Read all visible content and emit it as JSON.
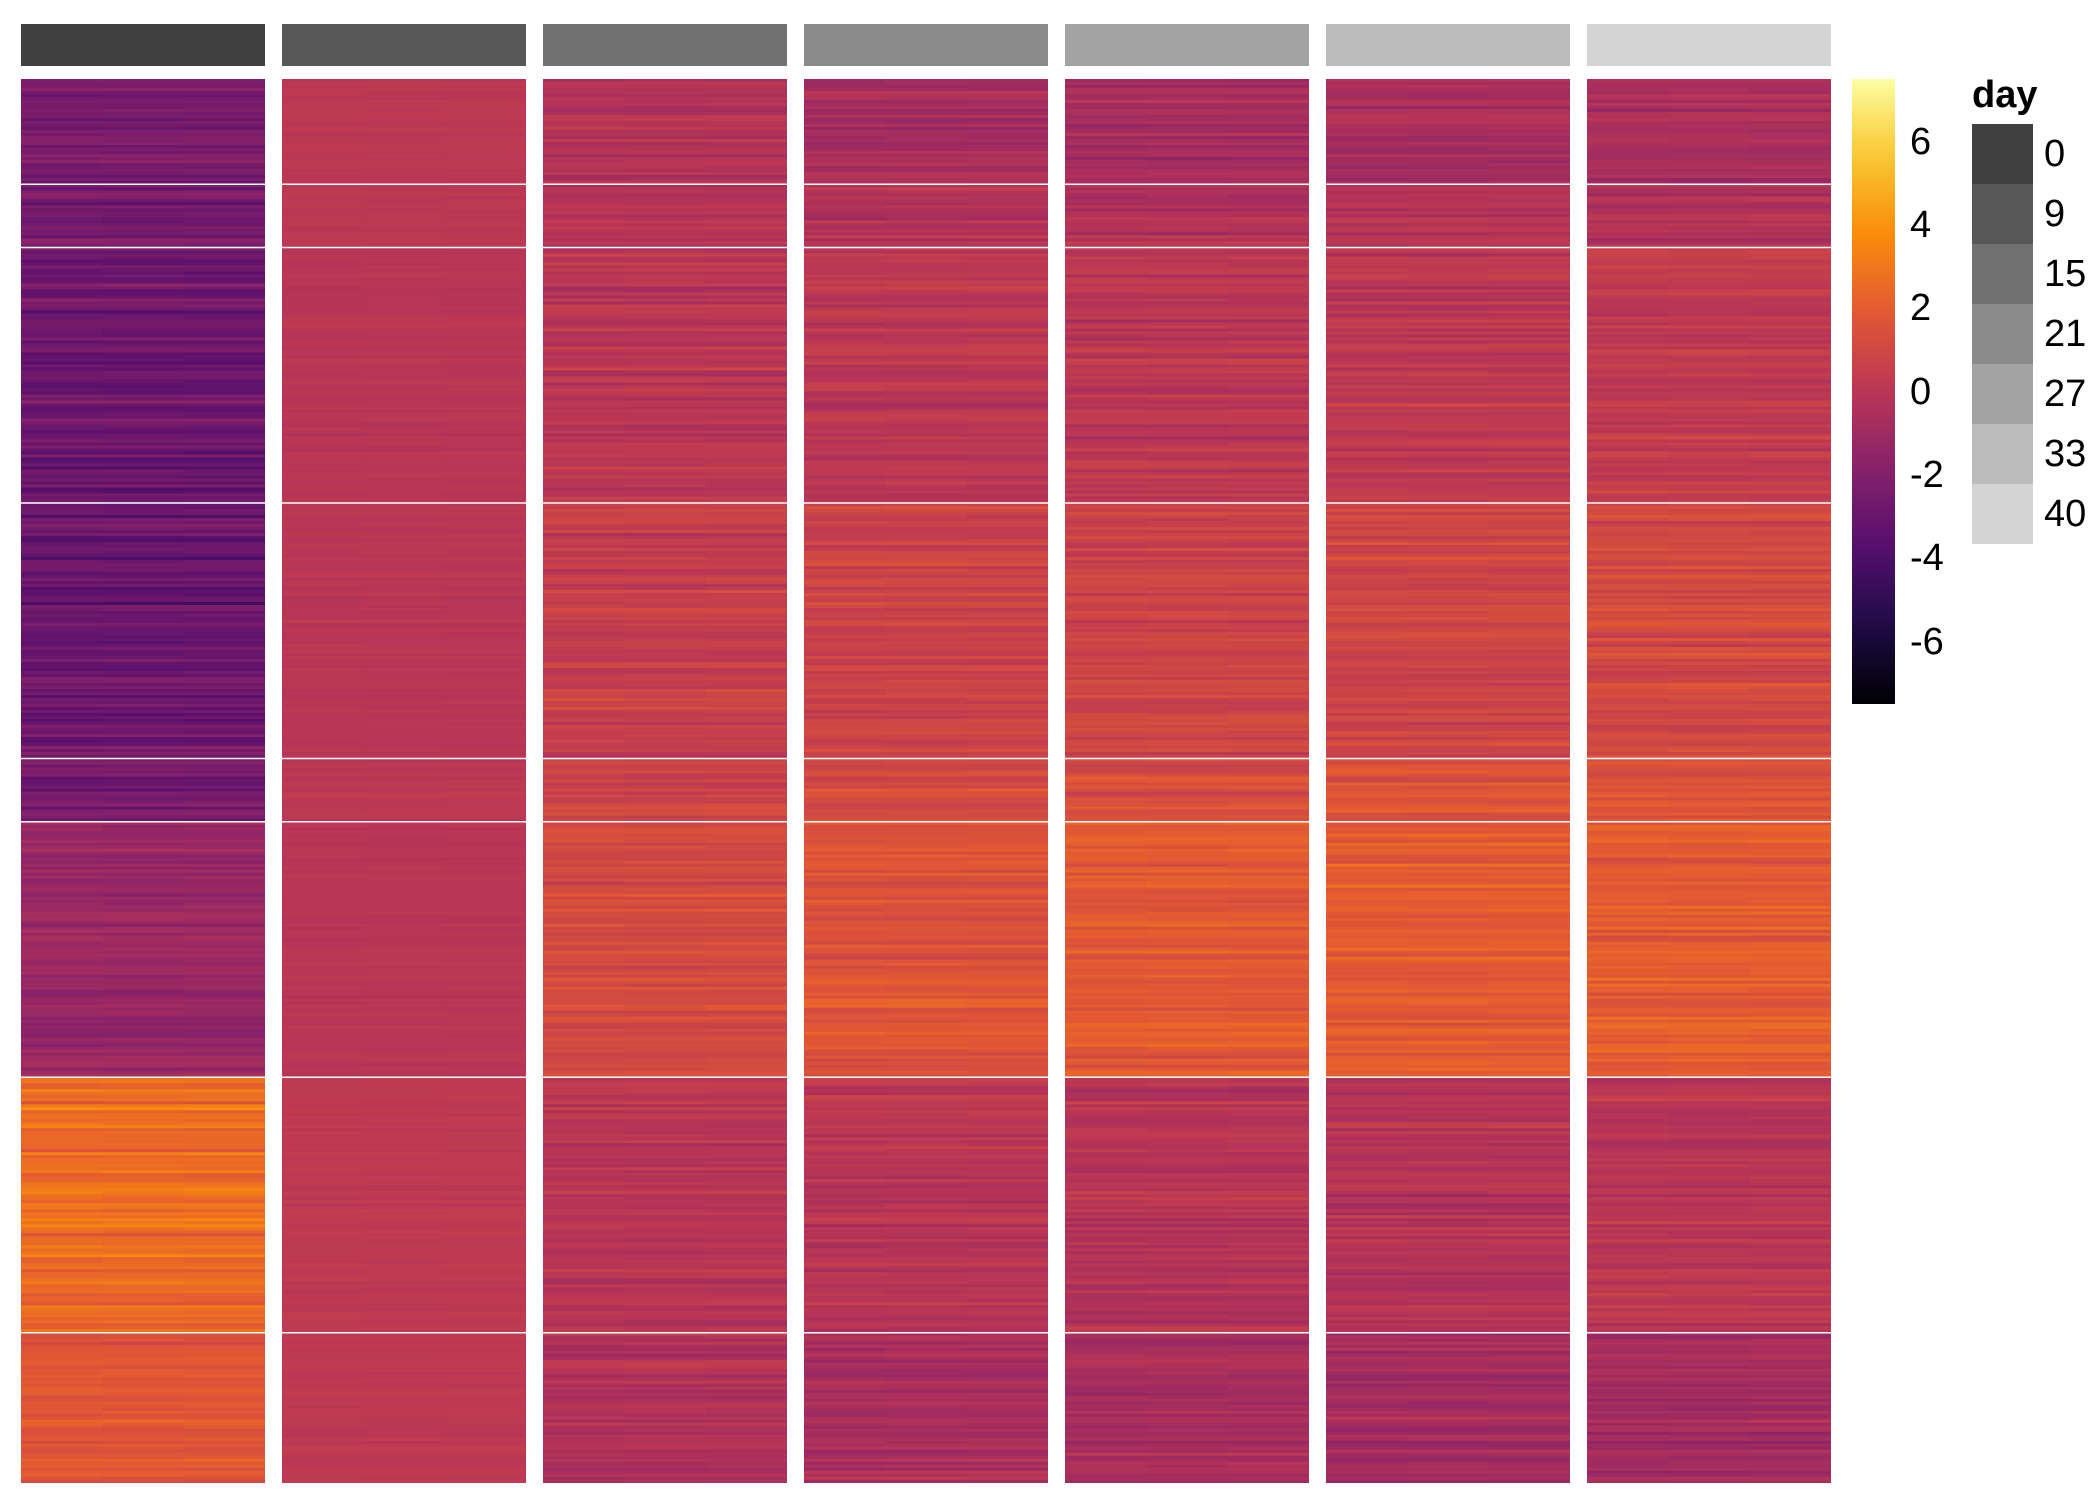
{
  "chart_data": {
    "type": "heatmap",
    "title": "",
    "colormap": "inferno",
    "colorbar": {
      "min": -7.5,
      "max": 7.5,
      "ticks": [
        "6",
        "4",
        "2",
        "0",
        "-2",
        "-4",
        "-6"
      ],
      "tick_values": [
        6,
        4,
        2,
        0,
        -2,
        -4,
        -6
      ]
    },
    "legend": {
      "title": "day",
      "placement": "right",
      "entries": [
        {
          "label": "0",
          "color": "#404040"
        },
        {
          "label": "9",
          "color": "#575757"
        },
        {
          "label": "15",
          "color": "#717171"
        },
        {
          "label": "21",
          "color": "#8a8a8a"
        },
        {
          "label": "27",
          "color": "#a3a3a3"
        },
        {
          "label": "33",
          "color": "#bcbcbc"
        },
        {
          "label": "40",
          "color": "#d4d4d4"
        }
      ]
    },
    "column_groups": [
      "0",
      "9",
      "15",
      "21",
      "27",
      "33",
      "40"
    ],
    "replicates_per_group": 3,
    "row_cluster_fractions": [
      0.075,
      0.045,
      0.182,
      0.182,
      0.045,
      0.182,
      0.182,
      0.107
    ],
    "group_means": {
      "0": [
        -2.4,
        -2.6,
        -2.8,
        -3.0,
        -2.6,
        -1.2,
        2.6,
        1.8
      ],
      "9": [
        0.1,
        0.1,
        0.0,
        0.0,
        0.1,
        0.0,
        0.2,
        0.2
      ],
      "15": [
        -0.3,
        -0.2,
        0.0,
        0.5,
        0.9,
        1.2,
        0.0,
        -0.3
      ],
      "21": [
        -0.6,
        -0.3,
        0.1,
        0.7,
        1.2,
        1.6,
        0.0,
        -0.6
      ],
      "27": [
        -0.7,
        -0.4,
        0.1,
        0.8,
        1.3,
        1.9,
        -0.1,
        -0.8
      ],
      "33": [
        -0.7,
        -0.3,
        0.2,
        0.9,
        1.5,
        2.0,
        -0.2,
        -0.8
      ],
      "40": [
        -0.6,
        -0.3,
        0.3,
        1.1,
        1.7,
        2.0,
        -0.1,
        -0.8
      ]
    }
  }
}
